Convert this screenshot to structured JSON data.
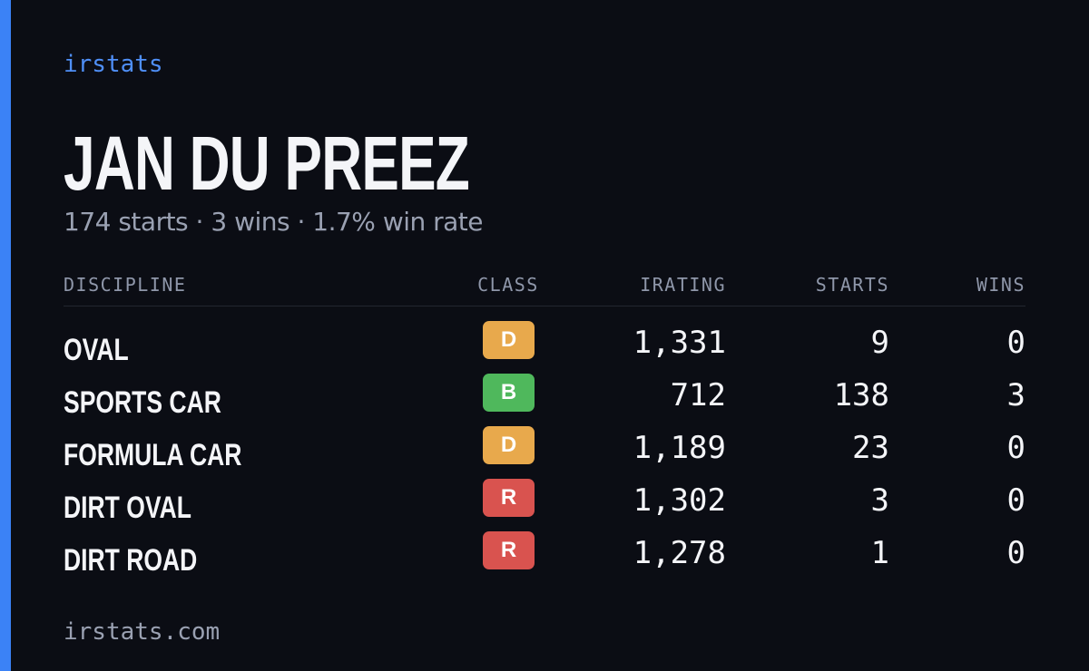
{
  "header": {
    "brand": "irstats",
    "name": "JAN DU PREEZ",
    "summary": "174 starts · 3 wins · 1.7% win rate"
  },
  "table": {
    "columns": [
      "DISCIPLINE",
      "CLASS",
      "IRATING",
      "STARTS",
      "WINS"
    ],
    "rows": [
      {
        "discipline": "OVAL",
        "class": "D",
        "class_color": "#e8a94c",
        "irating": "1,331",
        "starts": "9",
        "wins": "0"
      },
      {
        "discipline": "SPORTS CAR",
        "class": "B",
        "class_color": "#4fb85c",
        "irating": "712",
        "starts": "138",
        "wins": "3"
      },
      {
        "discipline": "FORMULA CAR",
        "class": "D",
        "class_color": "#e8a94c",
        "irating": "1,189",
        "starts": "23",
        "wins": "0"
      },
      {
        "discipline": "DIRT OVAL",
        "class": "R",
        "class_color": "#d9534f",
        "irating": "1,302",
        "starts": "3",
        "wins": "0"
      },
      {
        "discipline": "DIRT ROAD",
        "class": "R",
        "class_color": "#d9534f",
        "irating": "1,278",
        "starts": "1",
        "wins": "0"
      }
    ]
  },
  "footer": {
    "url": "irstats.com"
  }
}
